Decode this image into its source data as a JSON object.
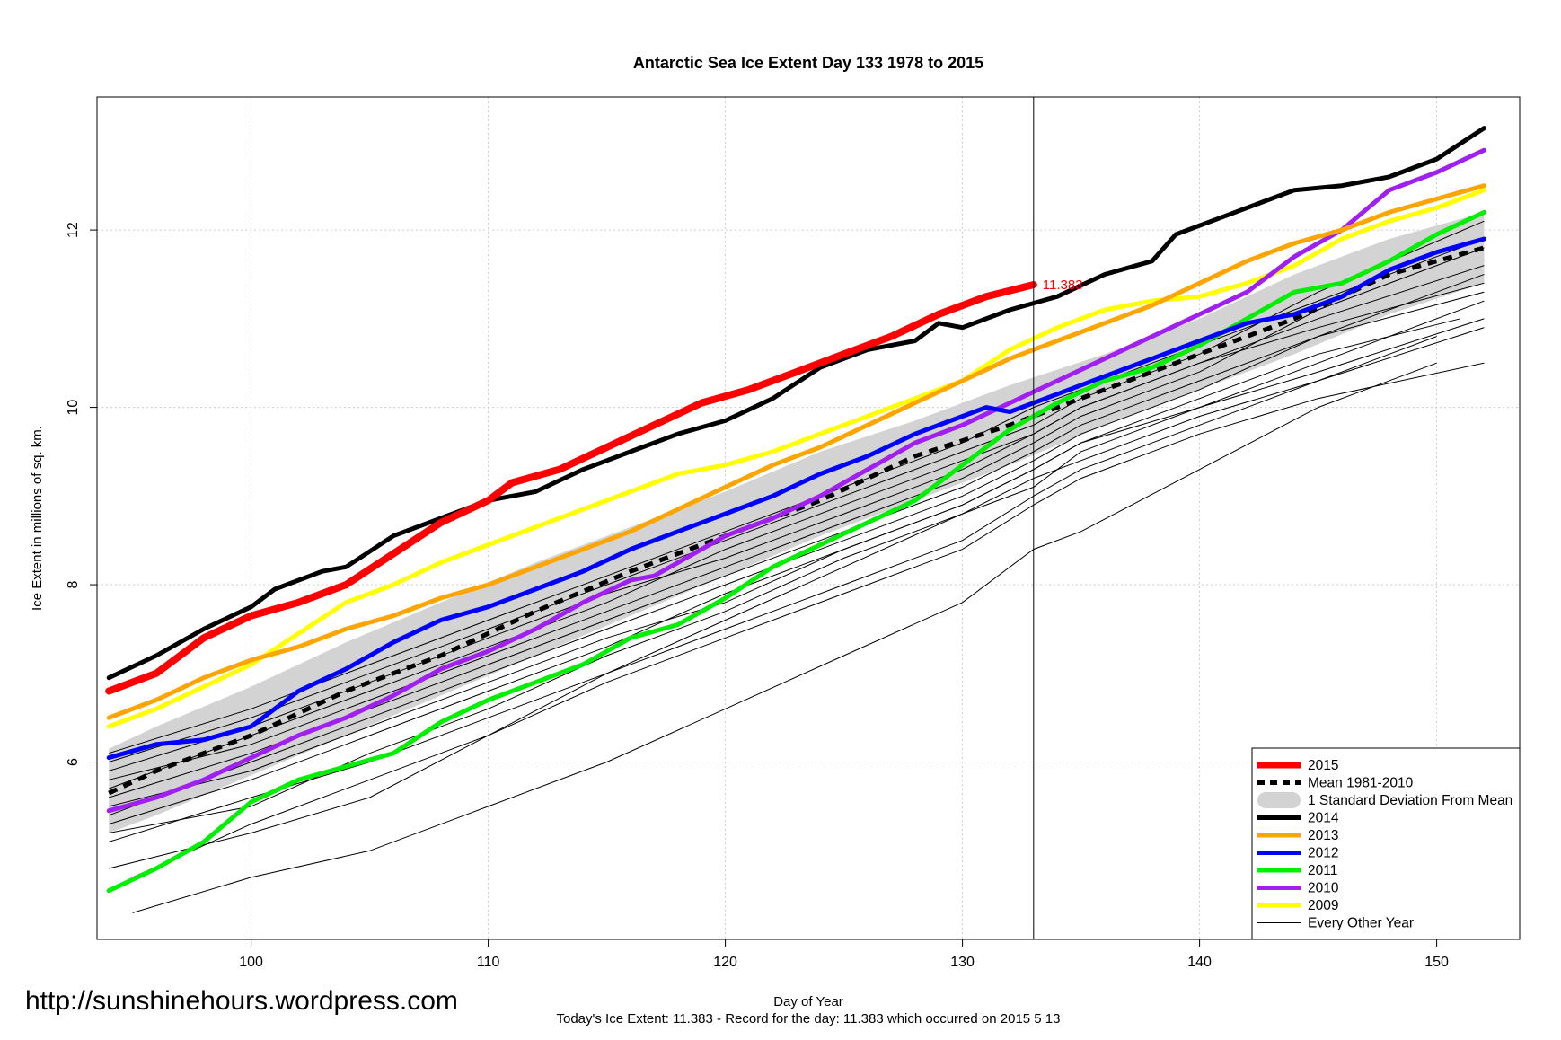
{
  "watermark": "http://sunshinehours.wordpress.com",
  "footer": "Today's Ice Extent: 11.383  - Record for the day: 11.383 which occurred on 2015 5 13",
  "chart_data": {
    "type": "line",
    "title": "Antarctic Sea Ice Extent Day 133 1978 to 2015",
    "xlabel": "Day of Year",
    "ylabel": "Ice Extent in millions of sq. km.",
    "xlim": [
      93.5,
      153.5
    ],
    "ylim": [
      4.0,
      13.5
    ],
    "xticks": [
      100,
      110,
      120,
      130,
      140,
      150
    ],
    "yticks": [
      6,
      8,
      10,
      12
    ],
    "grid": true,
    "legend_position": "bottom-right",
    "current_day": 133,
    "end_label": "11.383",
    "band": {
      "name": "1 Standard Deviation From Mean",
      "color": "#d3d3d3",
      "x": [
        94,
        96,
        100,
        104,
        108,
        112,
        116,
        120,
        124,
        128,
        132,
        136,
        140,
        144,
        148,
        152
      ],
      "upper": [
        6.15,
        6.4,
        6.85,
        7.35,
        7.8,
        8.25,
        8.65,
        9.05,
        9.5,
        9.85,
        10.25,
        10.6,
        11.0,
        11.5,
        11.9,
        12.2
      ],
      "lower": [
        5.2,
        5.4,
        5.85,
        6.3,
        6.75,
        7.2,
        7.65,
        8.1,
        8.55,
        8.95,
        9.35,
        9.8,
        10.2,
        10.6,
        11.05,
        11.4
      ]
    },
    "mean": {
      "name": "Mean 1981-2010",
      "color": "#000000",
      "x": [
        94,
        96,
        100,
        104,
        108,
        112,
        116,
        120,
        124,
        128,
        132,
        136,
        140,
        144,
        148,
        152
      ],
      "y": [
        5.65,
        5.9,
        6.3,
        6.8,
        7.2,
        7.7,
        8.15,
        8.55,
        8.95,
        9.45,
        9.8,
        10.2,
        10.6,
        11.0,
        11.5,
        11.8
      ]
    },
    "series": [
      {
        "name": "2015",
        "color": "#ff0000",
        "x": [
          94,
          96,
          98,
          100,
          102,
          104,
          106,
          108,
          110,
          111,
          113,
          115,
          117,
          119,
          121,
          123,
          125,
          127,
          129,
          131,
          133
        ],
        "y": [
          6.8,
          7.0,
          7.4,
          7.65,
          7.8,
          8.0,
          8.35,
          8.7,
          8.95,
          9.15,
          9.3,
          9.55,
          9.8,
          10.05,
          10.2,
          10.4,
          10.6,
          10.8,
          11.05,
          11.25,
          11.383
        ]
      },
      {
        "name": "2014",
        "color": "#000000",
        "x": [
          94,
          96,
          98,
          100,
          101,
          103,
          104,
          106,
          108,
          110,
          112,
          114,
          116,
          118,
          120,
          122,
          124,
          126,
          128,
          129,
          130,
          132,
          134,
          136,
          138,
          139,
          141,
          143,
          144,
          146,
          148,
          149,
          150,
          152
        ],
        "y": [
          6.95,
          7.2,
          7.5,
          7.75,
          7.95,
          8.15,
          8.2,
          8.55,
          8.75,
          8.95,
          9.05,
          9.3,
          9.5,
          9.7,
          9.85,
          10.1,
          10.45,
          10.65,
          10.75,
          10.95,
          10.9,
          11.1,
          11.25,
          11.5,
          11.65,
          11.95,
          12.15,
          12.35,
          12.45,
          12.5,
          12.6,
          12.7,
          12.8,
          13.15
        ]
      },
      {
        "name": "2013",
        "color": "#ffa500",
        "x": [
          94,
          96,
          98,
          100,
          102,
          104,
          106,
          108,
          110,
          112,
          114,
          116,
          118,
          120,
          122,
          124,
          126,
          128,
          130,
          132,
          134,
          136,
          138,
          140,
          142,
          144,
          146,
          148,
          150,
          152
        ],
        "y": [
          6.5,
          6.7,
          6.95,
          7.15,
          7.3,
          7.5,
          7.65,
          7.85,
          8.0,
          8.2,
          8.4,
          8.6,
          8.85,
          9.1,
          9.35,
          9.55,
          9.8,
          10.05,
          10.3,
          10.55,
          10.75,
          10.95,
          11.15,
          11.4,
          11.65,
          11.85,
          12.0,
          12.2,
          12.35,
          12.5
        ]
      },
      {
        "name": "2012",
        "color": "#0000ff",
        "x": [
          94,
          96,
          98,
          100,
          102,
          104,
          106,
          108,
          110,
          112,
          114,
          116,
          118,
          120,
          122,
          124,
          126,
          128,
          130,
          131,
          132,
          134,
          136,
          138,
          140,
          142,
          144,
          146,
          148,
          150,
          152
        ],
        "y": [
          6.05,
          6.2,
          6.25,
          6.4,
          6.8,
          7.05,
          7.35,
          7.6,
          7.75,
          7.95,
          8.15,
          8.4,
          8.6,
          8.8,
          9.0,
          9.25,
          9.45,
          9.7,
          9.9,
          10.0,
          9.95,
          10.15,
          10.35,
          10.55,
          10.75,
          10.95,
          11.05,
          11.25,
          11.55,
          11.75,
          11.9
        ]
      },
      {
        "name": "2011",
        "color": "#00ee00",
        "x": [
          94,
          96,
          98,
          100,
          102,
          104,
          106,
          108,
          110,
          112,
          114,
          116,
          118,
          120,
          122,
          124,
          126,
          128,
          130,
          132,
          134,
          136,
          138,
          140,
          142,
          144,
          146,
          148,
          150,
          152
        ],
        "y": [
          4.55,
          4.8,
          5.1,
          5.55,
          5.8,
          5.95,
          6.1,
          6.45,
          6.7,
          6.9,
          7.1,
          7.4,
          7.55,
          7.85,
          8.2,
          8.45,
          8.7,
          8.95,
          9.35,
          9.75,
          10.05,
          10.3,
          10.45,
          10.7,
          11.0,
          11.3,
          11.4,
          11.65,
          11.95,
          12.2
        ]
      },
      {
        "name": "2010",
        "color": "#a020f0",
        "x": [
          94,
          96,
          98,
          100,
          102,
          104,
          106,
          108,
          110,
          112,
          114,
          116,
          117,
          118,
          120,
          122,
          124,
          126,
          128,
          130,
          132,
          134,
          136,
          138,
          140,
          142,
          144,
          146,
          148,
          150,
          152
        ],
        "y": [
          5.45,
          5.6,
          5.8,
          6.05,
          6.3,
          6.5,
          6.75,
          7.05,
          7.25,
          7.5,
          7.8,
          8.05,
          8.1,
          8.25,
          8.55,
          8.75,
          9.0,
          9.3,
          9.6,
          9.8,
          10.05,
          10.3,
          10.55,
          10.8,
          11.05,
          11.3,
          11.7,
          12.0,
          12.45,
          12.65,
          12.9
        ]
      },
      {
        "name": "2009",
        "color": "#ffff00",
        "x": [
          94,
          96,
          98,
          100,
          102,
          104,
          106,
          108,
          110,
          112,
          114,
          116,
          118,
          120,
          122,
          124,
          126,
          128,
          130,
          132,
          134,
          136,
          138,
          140,
          142,
          144,
          146,
          148,
          150,
          152
        ],
        "y": [
          6.4,
          6.6,
          6.85,
          7.1,
          7.45,
          7.8,
          8.0,
          8.25,
          8.45,
          8.65,
          8.85,
          9.05,
          9.25,
          9.35,
          9.5,
          9.7,
          9.9,
          10.1,
          10.3,
          10.65,
          10.9,
          11.1,
          11.2,
          11.25,
          11.4,
          11.6,
          11.9,
          12.1,
          12.25,
          12.45
        ]
      }
    ],
    "other_years": {
      "name": "Every Other Year",
      "color": "#000000",
      "lines": [
        {
          "x": [
            95,
            100,
            105,
            110,
            115,
            120,
            125,
            130,
            133,
            135,
            140,
            145,
            150
          ],
          "y": [
            4.3,
            4.7,
            5.0,
            5.5,
            6.0,
            6.6,
            7.2,
            7.8,
            8.4,
            8.6,
            9.3,
            10.0,
            10.5
          ]
        },
        {
          "x": [
            94,
            100,
            105,
            110,
            115,
            120,
            125,
            130,
            133,
            135,
            140,
            145,
            150
          ],
          "y": [
            4.8,
            5.2,
            5.6,
            6.3,
            7.0,
            7.6,
            8.2,
            8.8,
            9.2,
            9.4,
            9.9,
            10.3,
            10.8
          ]
        },
        {
          "x": [
            94,
            100,
            105,
            110,
            115,
            120,
            125,
            130,
            133,
            135,
            140,
            145,
            151
          ],
          "y": [
            5.3,
            5.8,
            6.3,
            6.8,
            7.3,
            7.9,
            8.4,
            8.9,
            9.3,
            9.6,
            10.1,
            10.6,
            11.0
          ]
        },
        {
          "x": [
            94,
            100,
            105,
            110,
            115,
            120,
            125,
            130,
            133,
            135,
            140,
            145,
            152
          ],
          "y": [
            5.6,
            6.1,
            6.6,
            7.1,
            7.6,
            8.1,
            8.6,
            9.1,
            9.5,
            9.8,
            10.3,
            10.8,
            11.3
          ]
        },
        {
          "x": [
            94,
            100,
            105,
            110,
            115,
            120,
            125,
            130,
            133,
            135,
            140,
            145,
            152
          ],
          "y": [
            5.9,
            6.4,
            6.9,
            7.4,
            7.9,
            8.3,
            8.8,
            9.3,
            9.7,
            10.0,
            10.5,
            11.0,
            11.6
          ]
        },
        {
          "x": [
            94,
            100,
            105,
            110,
            115,
            120,
            125,
            130,
            133,
            135,
            140,
            145,
            152
          ],
          "y": [
            6.1,
            6.6,
            7.1,
            7.6,
            8.1,
            8.6,
            9.1,
            9.6,
            10.0,
            10.2,
            10.7,
            11.2,
            11.9
          ]
        },
        {
          "x": [
            94,
            100,
            105,
            110,
            115,
            120,
            125,
            130,
            133,
            135,
            140,
            145,
            152
          ],
          "y": [
            5.1,
            5.6,
            6.0,
            6.5,
            7.0,
            7.5,
            8.0,
            8.5,
            9.0,
            9.3,
            9.8,
            10.3,
            10.9
          ]
        },
        {
          "x": [
            95,
            100,
            105,
            110,
            115,
            120,
            125,
            130,
            133,
            135,
            140,
            145,
            152
          ],
          "y": [
            4.7,
            5.3,
            5.8,
            6.3,
            6.9,
            7.4,
            7.9,
            8.4,
            8.9,
            9.2,
            9.7,
            10.1,
            10.5
          ]
        },
        {
          "x": [
            94,
            100,
            105,
            110,
            115,
            120,
            125,
            130,
            133,
            135,
            140,
            145,
            152
          ],
          "y": [
            5.4,
            6.0,
            6.5,
            7.0,
            7.5,
            8.0,
            8.5,
            9.0,
            9.4,
            9.7,
            10.2,
            10.8,
            11.5
          ]
        },
        {
          "x": [
            94,
            100,
            105,
            110,
            115,
            120,
            125,
            130,
            133,
            135,
            140,
            145,
            152
          ],
          "y": [
            5.8,
            6.2,
            6.7,
            7.2,
            7.7,
            8.2,
            8.7,
            9.2,
            9.6,
            9.9,
            10.4,
            11.1,
            11.8
          ]
        },
        {
          "x": [
            94,
            100,
            105,
            110,
            115,
            120,
            125,
            130,
            133,
            135,
            140,
            145,
            152
          ],
          "y": [
            6.0,
            6.5,
            7.0,
            7.5,
            8.0,
            8.5,
            9.0,
            9.5,
            9.8,
            10.1,
            10.6,
            11.3,
            12.1
          ]
        },
        {
          "x": [
            94,
            100,
            105,
            110,
            115,
            120,
            125,
            130,
            133,
            135,
            140,
            145,
            152
          ],
          "y": [
            5.2,
            5.5,
            6.1,
            6.6,
            7.2,
            7.7,
            8.3,
            8.8,
            9.1,
            9.5,
            10.0,
            10.5,
            11.2
          ]
        },
        {
          "x": [
            94,
            100,
            105,
            110,
            115,
            120,
            125,
            130,
            133,
            135,
            140,
            145,
            152
          ],
          "y": [
            5.5,
            5.9,
            6.4,
            6.9,
            7.4,
            7.8,
            8.4,
            8.9,
            9.3,
            9.6,
            10.0,
            10.4,
            11.0
          ]
        },
        {
          "x": [
            94,
            100,
            105,
            110,
            115,
            120,
            125,
            130,
            133,
            135,
            140,
            145,
            152
          ],
          "y": [
            5.7,
            6.3,
            6.8,
            7.3,
            7.8,
            8.4,
            8.9,
            9.4,
            9.7,
            10.0,
            10.5,
            10.9,
            11.4
          ]
        }
      ]
    }
  }
}
